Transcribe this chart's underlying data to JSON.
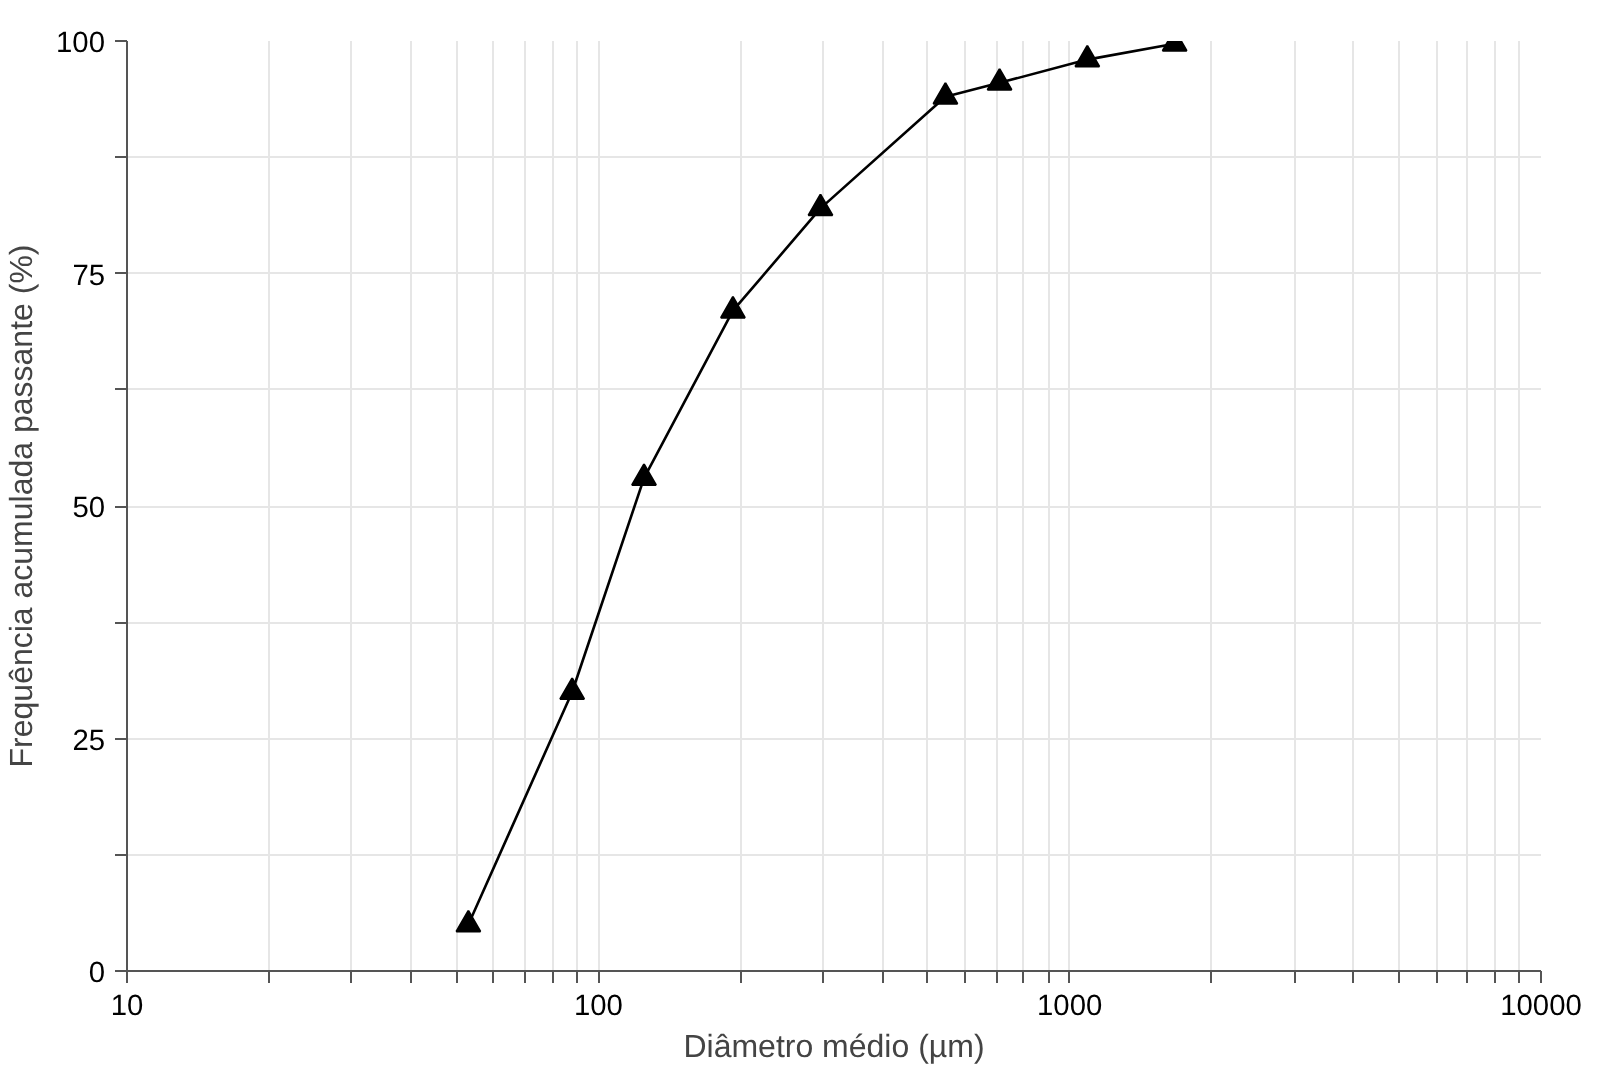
{
  "chart_data": {
    "type": "line",
    "xlabel": "Diâmetro médio (µm)",
    "ylabel": "Frequência acumulada passante (%)",
    "x": [
      53,
      88,
      125,
      193,
      296,
      545,
      710,
      1090,
      1670
    ],
    "series": [
      {
        "color": "#000000",
        "values": [
          5,
          30,
          53,
          71,
          82,
          94,
          95.5,
          98,
          99.7
        ]
      }
    ],
    "log": "x",
    "xlim": [
      10,
      10000
    ],
    "ylim": [
      0,
      100
    ],
    "xticks": [
      10,
      {
        "value": 20,
        "label": null
      },
      {
        "value": 30,
        "label": null
      },
      {
        "value": 40,
        "label": null
      },
      {
        "value": 50,
        "label": null
      },
      {
        "value": 60,
        "label": null
      },
      {
        "value": 70,
        "label": null
      },
      {
        "value": 80,
        "label": null
      },
      {
        "value": 90,
        "label": null
      },
      100,
      {
        "value": 200,
        "label": null
      },
      {
        "value": 300,
        "label": null
      },
      {
        "value": 400,
        "label": null
      },
      {
        "value": 500,
        "label": null
      },
      {
        "value": 600,
        "label": null
      },
      {
        "value": 700,
        "label": null
      },
      {
        "value": 800,
        "label": null
      },
      {
        "value": 900,
        "label": null
      },
      1000,
      {
        "value": 2000,
        "label": null
      },
      {
        "value": 3000,
        "label": null
      },
      {
        "value": 4000,
        "label": null
      },
      {
        "value": 5000,
        "label": null
      },
      {
        "value": 6000,
        "label": null
      },
      {
        "value": 7000,
        "label": null
      },
      {
        "value": 8000,
        "label": null
      },
      {
        "value": 9000,
        "label": null
      },
      10000
    ],
    "yticks": [
      0,
      {
        "value": 12.5,
        "label": null
      },
      25,
      {
        "value": 37.5,
        "label": null
      },
      50,
      {
        "value": 62.5,
        "label": null
      },
      75,
      {
        "value": 87.5,
        "label": null
      },
      100
    ],
    "grid": true,
    "marker": "triangle",
    "line_style": "solid"
  }
}
